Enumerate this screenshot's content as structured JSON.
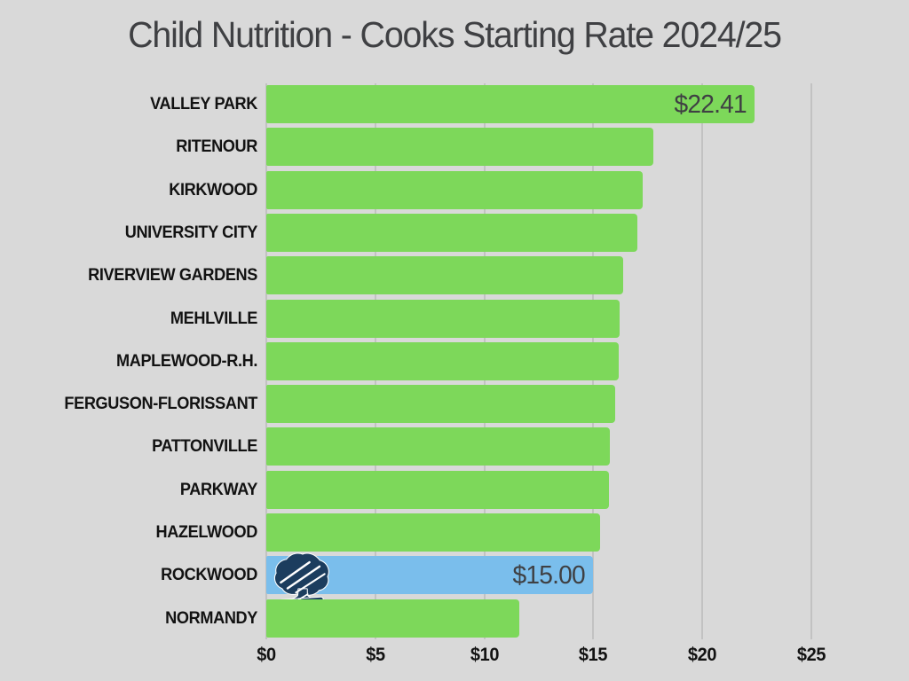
{
  "title": "Child Nutrition - Cooks Starting Rate 2024/25",
  "colors": {
    "background": "#D9D9D9",
    "bar_green": "#7DD85A",
    "bar_blue": "#7ABEEC",
    "gridline": "#C2C2C2",
    "title_text": "#3F4043",
    "label_text": "#121212",
    "logo_navy": "#1C3D5E"
  },
  "icons": {
    "rockwood_logo": "rockwood-tree-logo"
  },
  "chart_data": {
    "type": "bar",
    "orientation": "horizontal",
    "title": "Child Nutrition - Cooks Starting Rate 2024/25",
    "grid": true,
    "legend": "none",
    "x_axis": {
      "min": 0,
      "max": 25,
      "tick_step": 5,
      "tick_labels": [
        "$0",
        "$5",
        "$10",
        "$15",
        "$20",
        "$25"
      ]
    },
    "series": [
      {
        "district": "VALLEY PARK",
        "value": 22.41,
        "value_label": "$22.41",
        "highlighted": false
      },
      {
        "district": "RITENOUR",
        "value": 17.75,
        "value_label": "",
        "highlighted": false
      },
      {
        "district": "KIRKWOOD",
        "value": 17.25,
        "value_label": "",
        "highlighted": false
      },
      {
        "district": "UNIVERSITY CITY",
        "value": 17.0,
        "value_label": "",
        "highlighted": false
      },
      {
        "district": "RIVERVIEW GARDENS",
        "value": 16.35,
        "value_label": "",
        "highlighted": false
      },
      {
        "district": "MEHLVILLE",
        "value": 16.2,
        "value_label": "",
        "highlighted": false
      },
      {
        "district": "MAPLEWOOD-R.H.",
        "value": 16.15,
        "value_label": "",
        "highlighted": false
      },
      {
        "district": "FERGUSON-FLORISSANT",
        "value": 16.0,
        "value_label": "",
        "highlighted": false
      },
      {
        "district": "PATTONVILLE",
        "value": 15.75,
        "value_label": "",
        "highlighted": false
      },
      {
        "district": "PARKWAY",
        "value": 15.7,
        "value_label": "",
        "highlighted": false
      },
      {
        "district": "HAZELWOOD",
        "value": 15.3,
        "value_label": "",
        "highlighted": false
      },
      {
        "district": "ROCKWOOD",
        "value": 15.0,
        "value_label": "$15.00",
        "highlighted": true
      },
      {
        "district": "NORMANDY",
        "value": 11.6,
        "value_label": "",
        "highlighted": false
      }
    ]
  }
}
